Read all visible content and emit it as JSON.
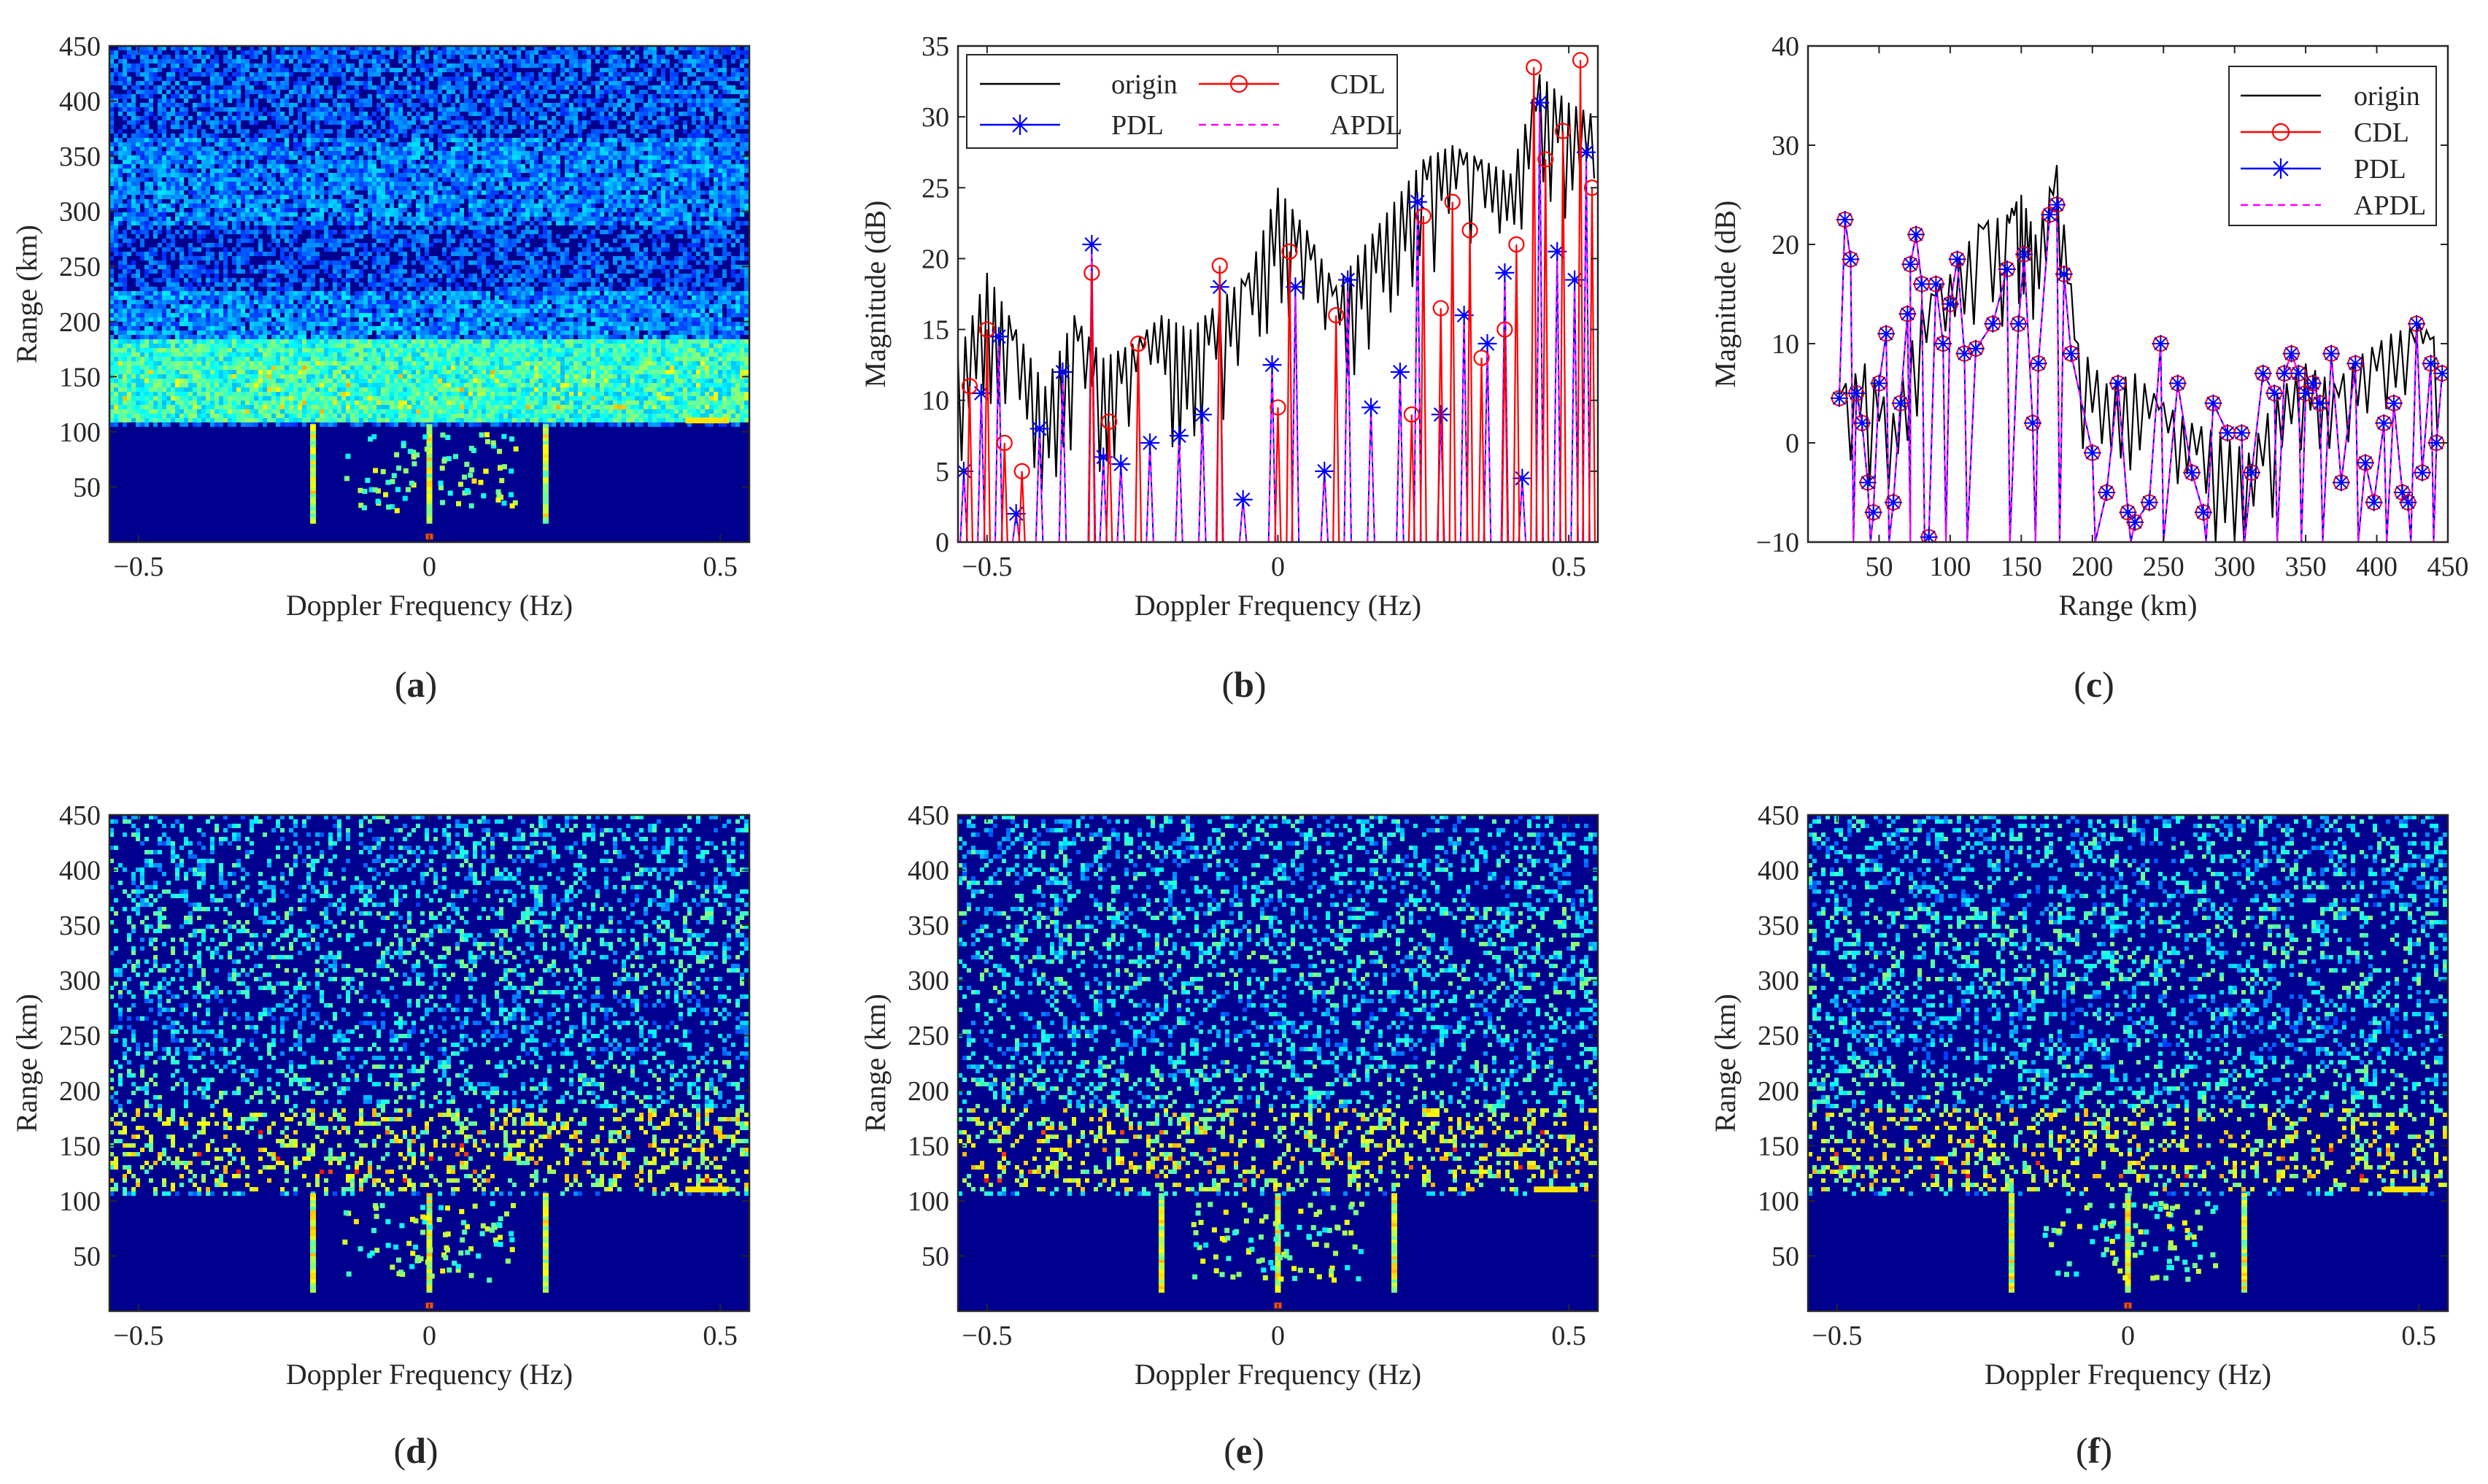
{
  "colors": {
    "origin": "#000000",
    "cdl": "#ff0000",
    "pdl": "#0000ff",
    "apdl": "#ff00ff",
    "heat_bg": "#00008f",
    "axis": "#262626"
  },
  "chart_data": [
    {
      "id": "a",
      "type": "heatmap",
      "caption": "a",
      "xlabel": "Doppler Frequency (Hz)",
      "ylabel": "Range (km)",
      "xlim": [
        -0.55,
        0.55
      ],
      "ylim": [
        0,
        450
      ],
      "xticks": [
        -0.5,
        0,
        0.5
      ],
      "xtick_labels": [
        "−0.5",
        "0",
        "0.5"
      ],
      "yticks": [
        50,
        100,
        150,
        200,
        250,
        300,
        350,
        400,
        450
      ],
      "ytick_labels": [
        "50",
        "100",
        "150",
        "200",
        "250",
        "300",
        "350",
        "400",
        "450"
      ],
      "colormap": "jet",
      "variant": "original"
    },
    {
      "id": "b",
      "type": "line",
      "caption": "b",
      "xlabel": "Doppler Frequency (Hz)",
      "ylabel": "Magnitude (dB)",
      "xlim": [
        -0.55,
        0.55
      ],
      "ylim": [
        0,
        35
      ],
      "xticks": [
        -0.5,
        0,
        0.5
      ],
      "xtick_labels": [
        "−0.5",
        "0",
        "0.5"
      ],
      "yticks": [
        0,
        5,
        10,
        15,
        20,
        25,
        30,
        35
      ],
      "ytick_labels": [
        "0",
        "5",
        "10",
        "15",
        "20",
        "25",
        "30",
        "35"
      ],
      "legend_position": "top-left",
      "legend_columns": 2,
      "series": [
        {
          "name": "origin",
          "key": "origin",
          "color": "#000000",
          "marker": "none",
          "style": "solid"
        },
        {
          "name": "CDL",
          "key": "cdl",
          "color": "#ff0000",
          "marker": "circle",
          "style": "solid"
        },
        {
          "name": "PDL",
          "key": "pdl",
          "color": "#0000ff",
          "marker": "star",
          "style": "solid"
        },
        {
          "name": "APDL",
          "key": "apdl",
          "color": "#ff00ff",
          "marker": "none",
          "style": "dashed"
        }
      ],
      "origin_profile": [
        [
          -0.55,
          13
        ],
        [
          -0.5,
          19
        ],
        [
          -0.45,
          15
        ],
        [
          -0.4,
          11
        ],
        [
          -0.35,
          16
        ],
        [
          -0.3,
          13
        ],
        [
          -0.25,
          14
        ],
        [
          -0.2,
          16
        ],
        [
          -0.15,
          15
        ],
        [
          -0.1,
          17
        ],
        [
          -0.05,
          19
        ],
        [
          0,
          25
        ],
        [
          0.05,
          22
        ],
        [
          0.1,
          18
        ],
        [
          0.15,
          21
        ],
        [
          0.2,
          24
        ],
        [
          0.25,
          27
        ],
        [
          0.3,
          28
        ],
        [
          0.35,
          27
        ],
        [
          0.4,
          26
        ],
        [
          0.45,
          33
        ],
        [
          0.5,
          31
        ],
        [
          0.55,
          30
        ]
      ],
      "cdl_points": [
        [
          -0.53,
          11
        ],
        [
          -0.5,
          15
        ],
        [
          -0.47,
          7
        ],
        [
          -0.44,
          5
        ],
        [
          -0.32,
          19
        ],
        [
          -0.29,
          8.5
        ],
        [
          -0.24,
          14
        ],
        [
          -0.1,
          19.5
        ],
        [
          0.0,
          9.5
        ],
        [
          0.02,
          20.5
        ],
        [
          0.1,
          16
        ],
        [
          0.23,
          9
        ],
        [
          0.25,
          23
        ],
        [
          0.28,
          16.5
        ],
        [
          0.3,
          24
        ],
        [
          0.33,
          22
        ],
        [
          0.35,
          13
        ],
        [
          0.39,
          15
        ],
        [
          0.41,
          21
        ],
        [
          0.44,
          33.5
        ],
        [
          0.46,
          27
        ],
        [
          0.49,
          29
        ],
        [
          0.52,
          34
        ],
        [
          0.54,
          25
        ]
      ],
      "pdl_points": [
        [
          -0.54,
          5
        ],
        [
          -0.51,
          10.5
        ],
        [
          -0.48,
          14.5
        ],
        [
          -0.45,
          2
        ],
        [
          -0.41,
          8
        ],
        [
          -0.37,
          12
        ],
        [
          -0.32,
          21
        ],
        [
          -0.3,
          6
        ],
        [
          -0.27,
          5.5
        ],
        [
          -0.22,
          7
        ],
        [
          -0.17,
          7.5
        ],
        [
          -0.13,
          9
        ],
        [
          -0.1,
          18
        ],
        [
          -0.06,
          3
        ],
        [
          -0.01,
          12.5
        ],
        [
          0.03,
          18
        ],
        [
          0.08,
          5
        ],
        [
          0.12,
          18.5
        ],
        [
          0.16,
          9.5
        ],
        [
          0.21,
          12
        ],
        [
          0.24,
          24
        ],
        [
          0.28,
          9
        ],
        [
          0.32,
          16
        ],
        [
          0.36,
          14
        ],
        [
          0.39,
          19
        ],
        [
          0.42,
          4.5
        ],
        [
          0.45,
          31
        ],
        [
          0.48,
          20.5
        ],
        [
          0.51,
          18.5
        ],
        [
          0.53,
          27.5
        ]
      ]
    },
    {
      "id": "c",
      "type": "line",
      "caption": "c",
      "xlabel": "Range (km)",
      "ylabel": "Magnitude (dB)",
      "xlim": [
        0,
        450
      ],
      "ylim": [
        -10,
        40
      ],
      "xticks": [
        50,
        100,
        150,
        200,
        250,
        300,
        350,
        400,
        450
      ],
      "xtick_labels": [
        "50",
        "100",
        "150",
        "200",
        "250",
        "300",
        "350",
        "400",
        "450"
      ],
      "yticks": [
        -10,
        0,
        10,
        20,
        30,
        40
      ],
      "ytick_labels": [
        "−10",
        "0",
        "10",
        "20",
        "30",
        "40"
      ],
      "legend_position": "top-right",
      "legend_columns": 1,
      "series": [
        {
          "name": "origin",
          "key": "origin",
          "color": "#000000",
          "marker": "none",
          "style": "solid"
        },
        {
          "name": "CDL",
          "key": "cdl",
          "color": "#ff0000",
          "marker": "circle",
          "style": "solid"
        },
        {
          "name": "PDL",
          "key": "pdl",
          "color": "#0000ff",
          "marker": "star",
          "style": "solid"
        },
        {
          "name": "APDL",
          "key": "apdl",
          "color": "#ff00ff",
          "marker": "none",
          "style": "dashed"
        }
      ],
      "origin_profile": [
        [
          20,
          5
        ],
        [
          40,
          8
        ],
        [
          60,
          3
        ],
        [
          80,
          14
        ],
        [
          100,
          17
        ],
        [
          120,
          22
        ],
        [
          140,
          23
        ],
        [
          150,
          25
        ],
        [
          160,
          21
        ],
        [
          175,
          28
        ],
        [
          190,
          10
        ],
        [
          210,
          6
        ],
        [
          230,
          7
        ],
        [
          250,
          4
        ],
        [
          270,
          2
        ],
        [
          290,
          1
        ],
        [
          310,
          -1
        ],
        [
          330,
          5
        ],
        [
          350,
          8
        ],
        [
          370,
          6
        ],
        [
          390,
          9
        ],
        [
          410,
          11
        ],
        [
          430,
          12
        ],
        [
          445,
          10
        ]
      ],
      "markers": [
        [
          22,
          4.5
        ],
        [
          26,
          22.5
        ],
        [
          30,
          18.5
        ],
        [
          34,
          5
        ],
        [
          38,
          2
        ],
        [
          42,
          -4
        ],
        [
          46,
          -7
        ],
        [
          50,
          6
        ],
        [
          55,
          11
        ],
        [
          60,
          -6
        ],
        [
          65,
          4
        ],
        [
          70,
          13
        ],
        [
          72,
          18
        ],
        [
          76,
          21
        ],
        [
          80,
          16
        ],
        [
          85,
          -9.5
        ],
        [
          90,
          16
        ],
        [
          95,
          10
        ],
        [
          100,
          14
        ],
        [
          105,
          18.5
        ],
        [
          110,
          9
        ],
        [
          118,
          9.5
        ],
        [
          130,
          12
        ],
        [
          140,
          17.5
        ],
        [
          148,
          12
        ],
        [
          152,
          19
        ],
        [
          158,
          2
        ],
        [
          162,
          8
        ],
        [
          170,
          23
        ],
        [
          175,
          24
        ],
        [
          180,
          17
        ],
        [
          185,
          9
        ],
        [
          200,
          -1
        ],
        [
          210,
          -5
        ],
        [
          218,
          6
        ],
        [
          225,
          -7
        ],
        [
          230,
          -8
        ],
        [
          240,
          -6
        ],
        [
          248,
          10
        ],
        [
          260,
          6
        ],
        [
          270,
          -3
        ],
        [
          278,
          -7
        ],
        [
          285,
          4
        ],
        [
          295,
          1
        ],
        [
          305,
          1
        ],
        [
          312,
          -3
        ],
        [
          320,
          7
        ],
        [
          328,
          5
        ],
        [
          335,
          7
        ],
        [
          340,
          9
        ],
        [
          345,
          7
        ],
        [
          350,
          5
        ],
        [
          355,
          6
        ],
        [
          360,
          4
        ],
        [
          368,
          9
        ],
        [
          375,
          -4
        ],
        [
          385,
          8
        ],
        [
          392,
          -2
        ],
        [
          398,
          -6
        ],
        [
          405,
          2
        ],
        [
          412,
          4
        ],
        [
          418,
          -5
        ],
        [
          422,
          -6
        ],
        [
          428,
          12
        ],
        [
          432,
          -3
        ],
        [
          438,
          8
        ],
        [
          442,
          0
        ],
        [
          446,
          7
        ]
      ]
    },
    {
      "id": "d",
      "type": "heatmap",
      "caption": "d",
      "xlabel": "Doppler Frequency (Hz)",
      "ylabel": "Range (km)",
      "xlim": [
        -0.55,
        0.55
      ],
      "ylim": [
        0,
        450
      ],
      "xticks": [
        -0.5,
        0,
        0.5
      ],
      "xtick_labels": [
        "−0.5",
        "0",
        "0.5"
      ],
      "yticks": [
        50,
        100,
        150,
        200,
        250,
        300,
        350,
        400,
        450
      ],
      "ytick_labels": [
        "50",
        "100",
        "150",
        "200",
        "250",
        "300",
        "350",
        "400",
        "450"
      ],
      "colormap": "jet",
      "variant": "sparse"
    },
    {
      "id": "e",
      "type": "heatmap",
      "caption": "e",
      "xlabel": "Doppler Frequency (Hz)",
      "ylabel": "Range (km)",
      "xlim": [
        -0.55,
        0.55
      ],
      "ylim": [
        0,
        450
      ],
      "xticks": [
        -0.5,
        0,
        0.5
      ],
      "xtick_labels": [
        "−0.5",
        "0",
        "0.5"
      ],
      "yticks": [
        50,
        100,
        150,
        200,
        250,
        300,
        350,
        400,
        450
      ],
      "ytick_labels": [
        "50",
        "100",
        "150",
        "200",
        "250",
        "300",
        "350",
        "400",
        "450"
      ],
      "colormap": "jet",
      "variant": "sparse"
    },
    {
      "id": "f",
      "type": "heatmap",
      "caption": "f",
      "xlabel": "Doppler Frequency (Hz)",
      "ylabel": "Range (km)",
      "xlim": [
        -0.55,
        0.55
      ],
      "ylim": [
        0,
        450
      ],
      "xticks": [
        -0.5,
        0,
        0.5
      ],
      "xtick_labels": [
        "−0.5",
        "0",
        "0.5"
      ],
      "yticks": [
        50,
        100,
        150,
        200,
        250,
        300,
        350,
        400,
        450
      ],
      "ytick_labels": [
        "50",
        "100",
        "150",
        "200",
        "250",
        "300",
        "350",
        "400",
        "450"
      ],
      "colormap": "jet",
      "variant": "sparse"
    }
  ]
}
